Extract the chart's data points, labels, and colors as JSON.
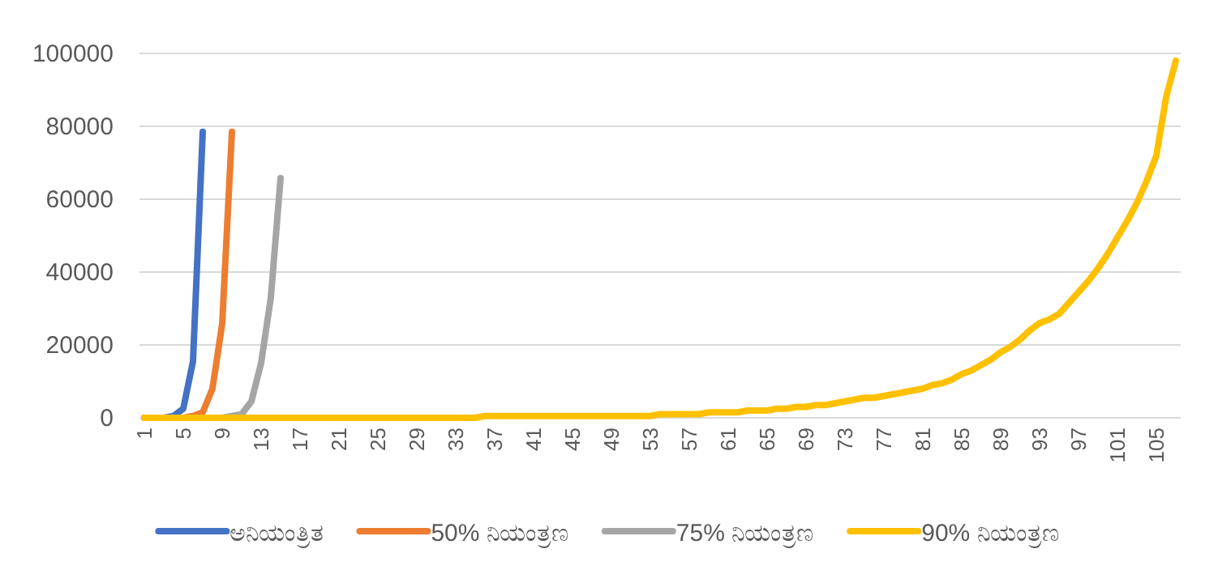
{
  "chart_data": {
    "type": "line",
    "categories": [
      "1",
      null,
      null,
      null,
      "5",
      null,
      null,
      null,
      "9",
      null,
      null,
      null,
      "13",
      null,
      null,
      null,
      "17",
      null,
      null,
      null,
      "21",
      null,
      null,
      null,
      "25",
      null,
      null,
      null,
      "29",
      null,
      null,
      null,
      "33",
      null,
      null,
      null,
      "37",
      null,
      null,
      null,
      "41",
      null,
      null,
      null,
      "45",
      null,
      null,
      null,
      "49",
      null,
      null,
      null,
      "53",
      null,
      null,
      null,
      "57",
      null,
      null,
      null,
      "61",
      null,
      null,
      null,
      "65",
      null,
      null,
      null,
      "69",
      null,
      null,
      null,
      "73",
      null,
      null,
      null,
      "77",
      null,
      null,
      null,
      "81",
      null,
      null,
      null,
      "85",
      null,
      null,
      null,
      "89",
      null,
      null,
      null,
      "93",
      null,
      null,
      null,
      "97",
      null,
      null,
      null,
      "101",
      null,
      null,
      null,
      "105",
      null,
      null
    ],
    "series": [
      {
        "name": "ಅನಿಯಂತ್ರಿತ",
        "color": "#4472c4",
        "values": [
          0,
          0,
          0,
          500,
          2500,
          15500,
          78500,
          null,
          null,
          null,
          null,
          null,
          null,
          null,
          null,
          null,
          null,
          null,
          null,
          null,
          null,
          null,
          null,
          null,
          null,
          null,
          null,
          null,
          null,
          null,
          null,
          null,
          null,
          null,
          null,
          null,
          null,
          null,
          null,
          null,
          null,
          null,
          null,
          null,
          null,
          null,
          null,
          null,
          null,
          null,
          null,
          null,
          null,
          null,
          null,
          null,
          null,
          null,
          null,
          null,
          null,
          null,
          null,
          null,
          null,
          null,
          null,
          null,
          null,
          null,
          null,
          null,
          null,
          null,
          null,
          null,
          null,
          null,
          null,
          null,
          null,
          null,
          null,
          null,
          null,
          null,
          null,
          null,
          null,
          null,
          null,
          null,
          null,
          null,
          null,
          null,
          null,
          null,
          null,
          null,
          null,
          null,
          null,
          null,
          null,
          null,
          null
        ]
      },
      {
        "name": "50% ನಿಯಂತ್ರಣ",
        "color": "#ed7d31",
        "values": [
          null,
          null,
          0,
          0,
          0,
          500,
          1500,
          8000,
          25800,
          78500,
          null,
          null,
          null,
          null,
          null,
          null,
          null,
          null,
          null,
          null,
          null,
          null,
          null,
          null,
          null,
          null,
          null,
          null,
          null,
          null,
          null,
          null,
          null,
          null,
          null,
          null,
          null,
          null,
          null,
          null,
          null,
          null,
          null,
          null,
          null,
          null,
          null,
          null,
          null,
          null,
          null,
          null,
          null,
          null,
          null,
          null,
          null,
          null,
          null,
          null,
          null,
          null,
          null,
          null,
          null,
          null,
          null,
          null,
          null,
          null,
          null,
          null,
          null,
          null,
          null,
          null,
          null,
          null,
          null,
          null,
          null,
          null,
          null,
          null,
          null,
          null,
          null,
          null,
          null,
          null,
          null,
          null,
          null,
          null,
          null,
          null,
          null,
          null,
          null,
          null,
          null,
          null,
          null,
          null,
          null,
          null,
          null
        ]
      },
      {
        "name": "75% ನಿಯಂತ್ರಣ",
        "color": "#a5a5a5",
        "values": [
          0,
          0,
          0,
          0,
          0,
          0,
          0,
          0,
          0,
          500,
          1000,
          4500,
          15000,
          33000,
          65800,
          null,
          null,
          null,
          null,
          null,
          null,
          null,
          null,
          null,
          null,
          null,
          null,
          null,
          null,
          null,
          null,
          null,
          null,
          null,
          null,
          null,
          null,
          null,
          null,
          null,
          null,
          null,
          null,
          null,
          null,
          null,
          null,
          null,
          null,
          null,
          null,
          null,
          null,
          null,
          null,
          null,
          null,
          null,
          null,
          null,
          null,
          null,
          null,
          null,
          null,
          null,
          null,
          null,
          null,
          null,
          null,
          null,
          null,
          null,
          null,
          null,
          null,
          null,
          null,
          null,
          null,
          null,
          null,
          null,
          null,
          null,
          null,
          null,
          null,
          null,
          null,
          null,
          null,
          null,
          null,
          null,
          null,
          null,
          null,
          null,
          null,
          null,
          null,
          null,
          null,
          null,
          null
        ]
      },
      {
        "name": "90% ನಿಯಂತ್ರಣ",
        "color": "#ffc000",
        "values": [
          0,
          0,
          0,
          0,
          0,
          0,
          0,
          0,
          0,
          0,
          0,
          0,
          0,
          0,
          0,
          0,
          0,
          0,
          0,
          0,
          0,
          0,
          0,
          0,
          0,
          0,
          0,
          0,
          0,
          0,
          0,
          0,
          0,
          0,
          0,
          500,
          500,
          500,
          500,
          500,
          500,
          500,
          500,
          500,
          500,
          500,
          500,
          500,
          500,
          500,
          500,
          500,
          500,
          1000,
          1000,
          1000,
          1000,
          1000,
          1500,
          1500,
          1500,
          1500,
          2000,
          2000,
          2000,
          2500,
          2500,
          3000,
          3000,
          3500,
          3500,
          4000,
          4500,
          5000,
          5500,
          5500,
          6000,
          6500,
          7000,
          7500,
          8000,
          9000,
          9500,
          10500,
          12000,
          13000,
          14500,
          16000,
          18000,
          19500,
          21500,
          24000,
          26000,
          27000,
          28500,
          31500,
          34500,
          37500,
          41000,
          45000,
          49500,
          54000,
          59000,
          65000,
          72000,
          88000,
          98000
        ]
      }
    ],
    "ylim": [
      0,
      100000
    ],
    "yticks": [
      0,
      20000,
      40000,
      60000,
      80000,
      100000
    ],
    "grid": "y",
    "legend": "bottom",
    "marker": "none",
    "line_style": "solid"
  }
}
